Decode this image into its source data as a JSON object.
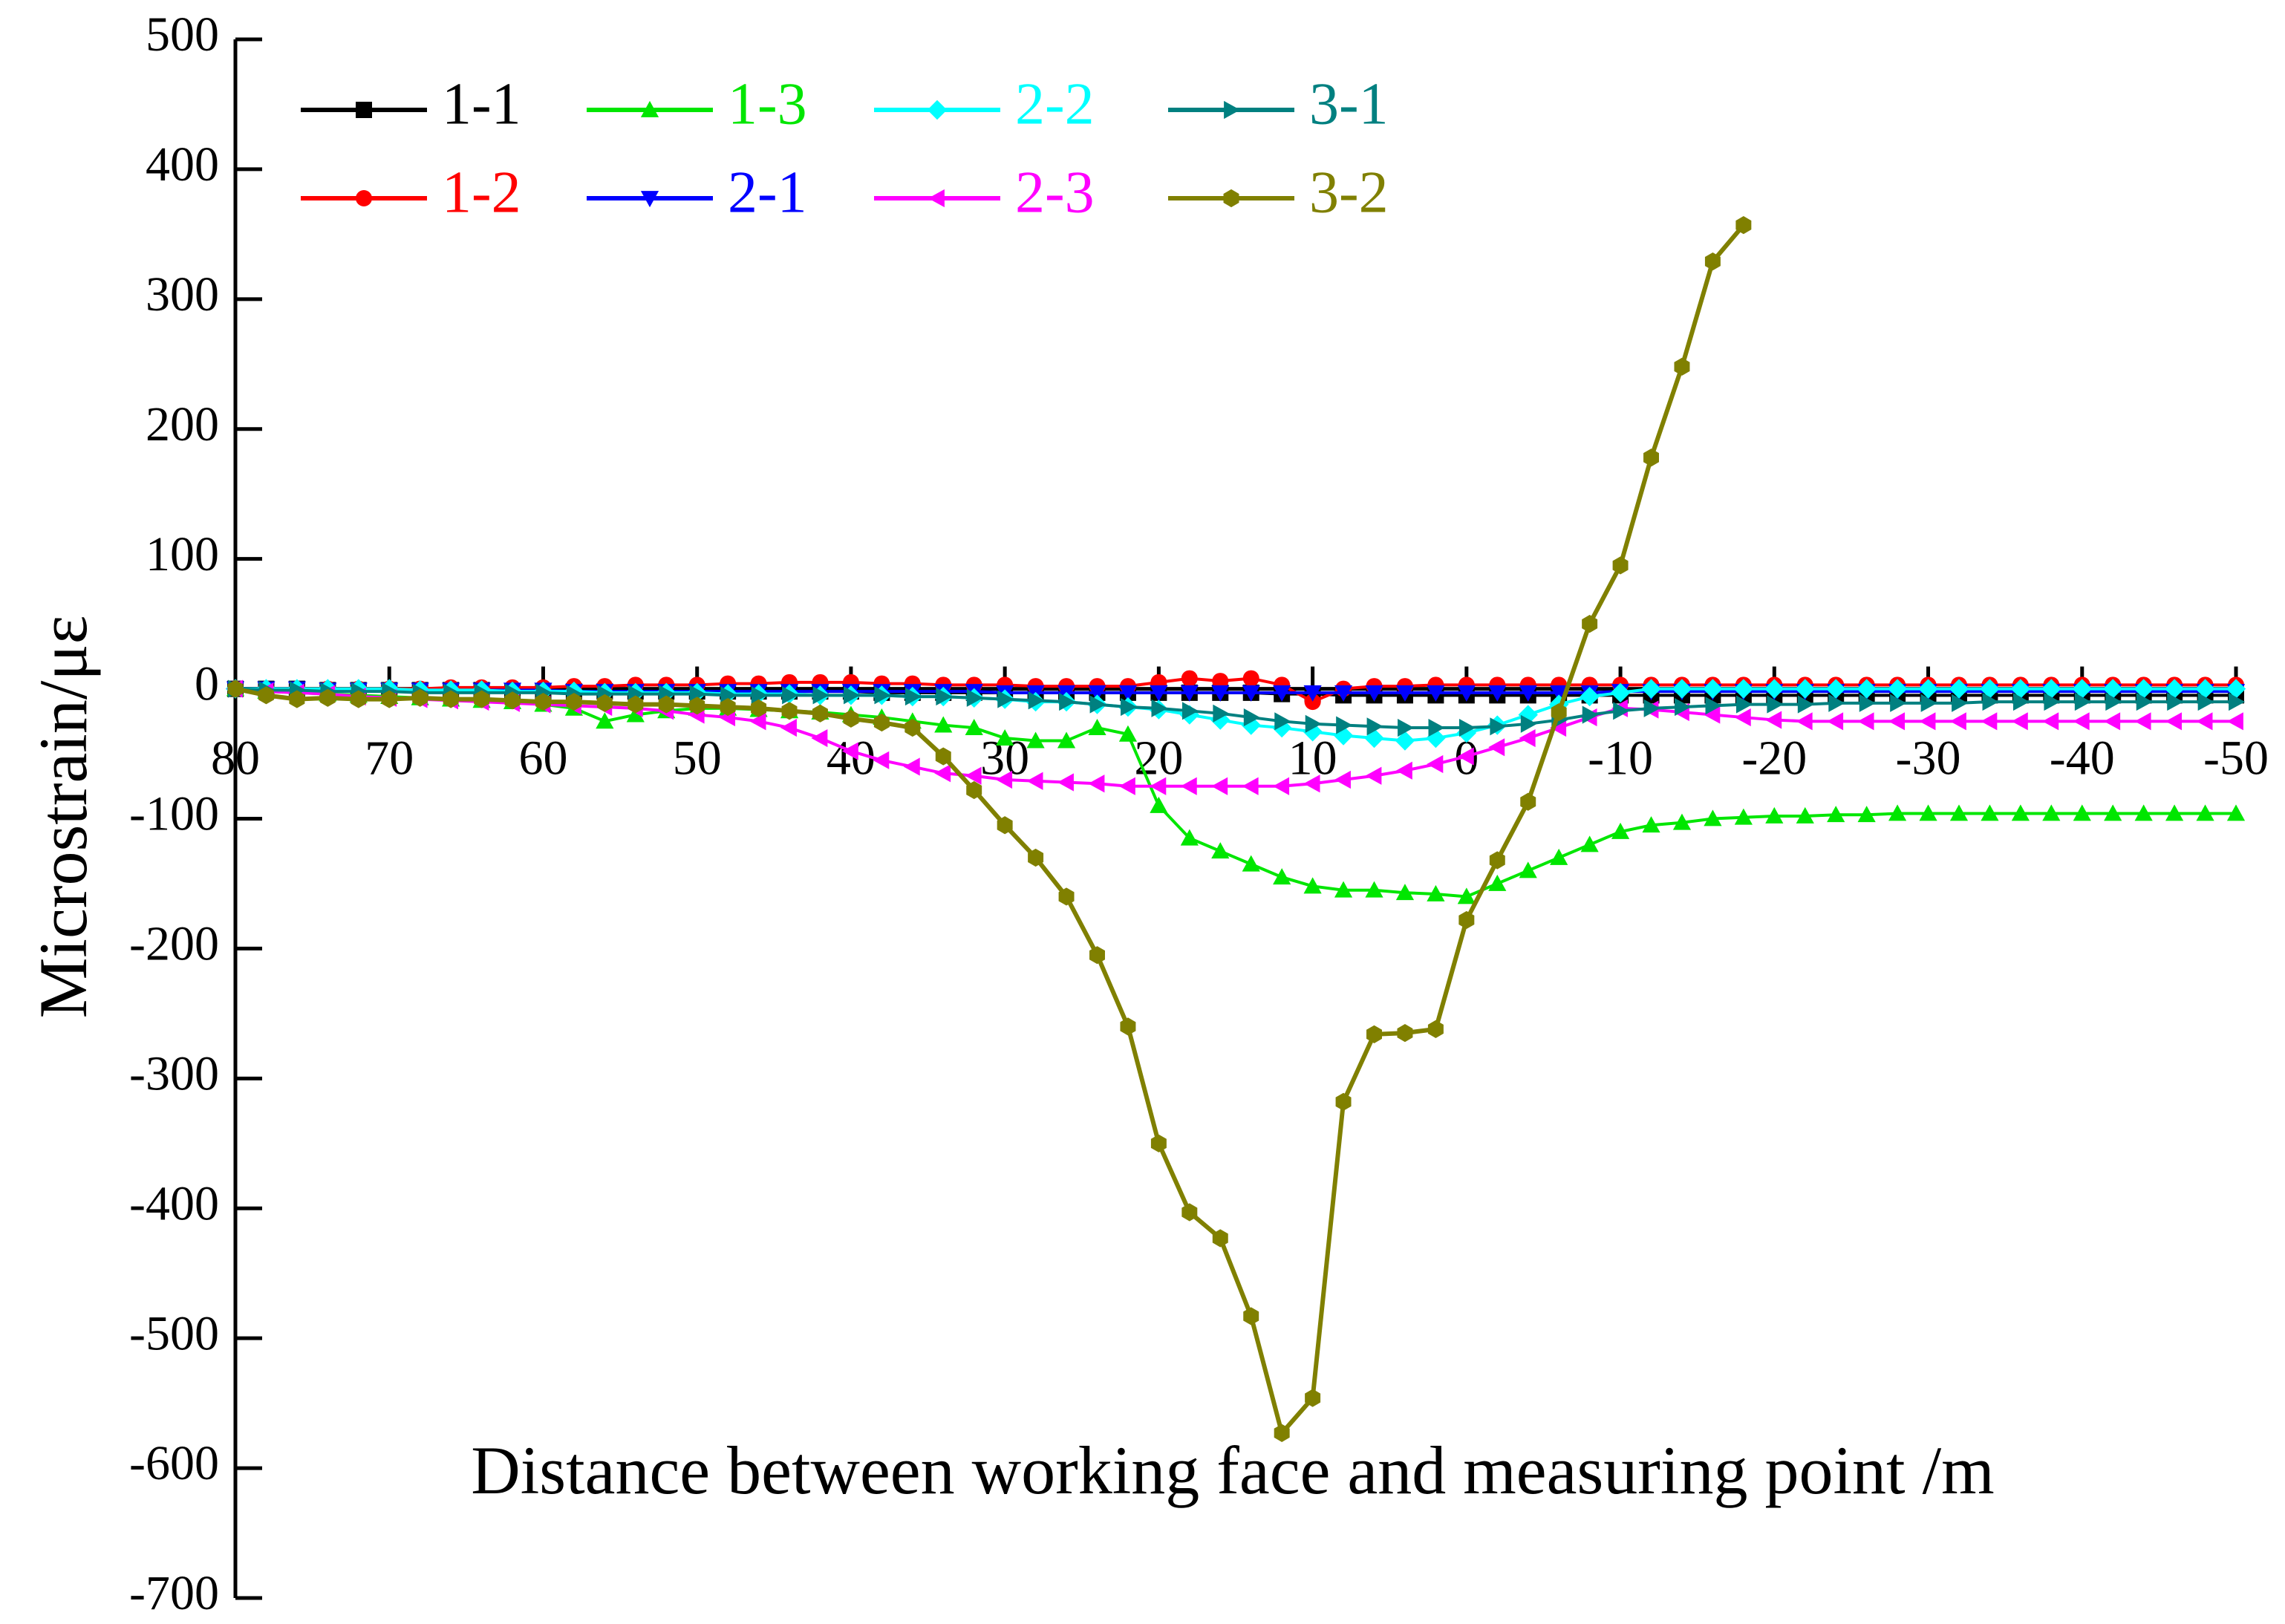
{
  "chart_data": {
    "type": "line",
    "xlabel": "Distance between working face and measuring point /m",
    "ylabel": "Microstrain/με",
    "x": [
      80,
      78,
      76,
      74,
      72,
      70,
      68,
      66,
      64,
      62,
      60,
      58,
      56,
      54,
      52,
      50,
      48,
      46,
      44,
      42,
      40,
      38,
      36,
      34,
      32,
      30,
      28,
      26,
      24,
      22,
      20,
      18,
      16,
      14,
      12,
      10,
      8,
      6,
      4,
      2,
      0,
      -2,
      -4,
      -6,
      -8,
      -10,
      -12,
      -14,
      -16,
      -18,
      -20,
      -22,
      -24,
      -26,
      -28,
      -30,
      -32,
      -34,
      -36,
      -38,
      -40,
      -42,
      -44,
      -46,
      -48,
      -50
    ],
    "xlim": [
      80,
      -50
    ],
    "xticks": [
      80,
      70,
      60,
      50,
      40,
      30,
      20,
      10,
      0,
      -10,
      -20,
      -30,
      -40,
      -50
    ],
    "ylim": [
      -700,
      500
    ],
    "yticks": [
      -700,
      -600,
      -500,
      -400,
      -300,
      -200,
      -100,
      0,
      100,
      200,
      300,
      400,
      500
    ],
    "legend": "upper-left",
    "series": [
      {
        "name": "1-1",
        "color": "#000000",
        "marker": "square",
        "values": [
          0,
          0,
          0,
          -1,
          -1,
          -1,
          -1,
          -1,
          -1,
          -2,
          -2,
          -2,
          -2,
          -2,
          -2,
          -2,
          -2,
          -2,
          -2,
          -2,
          -2,
          -3,
          -3,
          -3,
          -3,
          -3,
          -3,
          -3,
          -3,
          -3,
          -3,
          -3,
          -3,
          -3,
          -4,
          -4,
          -5,
          -5,
          -5,
          -5,
          -5,
          -5,
          -5,
          -5,
          -5,
          -5,
          -5,
          -5,
          -5,
          -5,
          -5,
          -5,
          -5,
          -5,
          -5,
          -5,
          -5,
          -5,
          -5,
          -5,
          -5,
          -5,
          -5,
          -5,
          -5,
          -5
        ]
      },
      {
        "name": "1-2",
        "color": "#ff0000",
        "marker": "circle",
        "values": [
          0,
          0,
          0,
          0,
          0,
          0,
          0,
          1,
          1,
          1,
          1,
          2,
          2,
          3,
          3,
          3,
          4,
          4,
          5,
          5,
          5,
          4,
          4,
          3,
          3,
          3,
          2,
          2,
          2,
          2,
          5,
          8,
          6,
          8,
          3,
          -10,
          0,
          2,
          2,
          3,
          3,
          3,
          3,
          3,
          3,
          3,
          3,
          3,
          3,
          3,
          3,
          3,
          3,
          3,
          3,
          3,
          3,
          3,
          3,
          3,
          3,
          3,
          3,
          3,
          3,
          3
        ]
      },
      {
        "name": "1-3",
        "color": "#00e600",
        "marker": "triangle-up",
        "values": [
          0,
          -2,
          -3,
          -4,
          -5,
          -6,
          -7,
          -8,
          -9,
          -10,
          -12,
          -15,
          -25,
          -20,
          -17,
          -15,
          -15,
          -16,
          -17,
          -18,
          -20,
          -22,
          -25,
          -28,
          -30,
          -38,
          -40,
          -40,
          -30,
          -35,
          -90,
          -115,
          -125,
          -135,
          -145,
          -152,
          -155,
          -155,
          -157,
          -158,
          -160,
          -150,
          -140,
          -130,
          -120,
          -110,
          -105,
          -103,
          -100,
          -99,
          -98,
          -98,
          -97,
          -97,
          -96,
          -96,
          -96,
          -96,
          -96,
          -96,
          -96,
          -96,
          -96,
          -96,
          -96,
          -96
        ]
      },
      {
        "name": "2-1",
        "color": "#0000ff",
        "marker": "triangle-down",
        "values": [
          0,
          0,
          0,
          -1,
          -1,
          -1,
          -1,
          -1,
          -1,
          -1,
          -1,
          -2,
          -2,
          -2,
          -2,
          -2,
          -2,
          -2,
          -2,
          -2,
          -2,
          -2,
          -2,
          -2,
          -2,
          -3,
          -3,
          -3,
          -3,
          -3,
          -3,
          -3,
          -3,
          -3,
          -3,
          -3,
          -3,
          -3,
          -3,
          -3,
          -3,
          -3,
          -3,
          -3,
          -3,
          -2,
          -2,
          -2,
          -2,
          -2,
          -2,
          -2,
          -2,
          -2,
          -2,
          -2,
          -2,
          -2,
          -2,
          -2,
          -2,
          -2,
          -2,
          -2,
          -2,
          -2
        ]
      },
      {
        "name": "2-2",
        "color": "#00ffff",
        "marker": "diamond",
        "values": [
          0,
          0,
          0,
          0,
          0,
          0,
          -1,
          -1,
          -1,
          -2,
          -2,
          -2,
          -3,
          -3,
          -3,
          -3,
          -4,
          -4,
          -4,
          -5,
          -5,
          -5,
          -6,
          -6,
          -7,
          -8,
          -10,
          -10,
          -12,
          -14,
          -16,
          -20,
          -24,
          -28,
          -30,
          -33,
          -36,
          -38,
          -40,
          -38,
          -34,
          -28,
          -20,
          -12,
          -6,
          -3,
          0,
          0,
          0,
          0,
          0,
          0,
          0,
          0,
          0,
          0,
          0,
          0,
          0,
          0,
          0,
          0,
          0,
          0,
          0,
          0
        ]
      },
      {
        "name": "2-3",
        "color": "#ff00ff",
        "marker": "triangle-left",
        "values": [
          0,
          -2,
          -3,
          -4,
          -6,
          -7,
          -8,
          -9,
          -10,
          -11,
          -12,
          -13,
          -14,
          -15,
          -17,
          -20,
          -22,
          -25,
          -30,
          -38,
          -48,
          -55,
          -60,
          -65,
          -67,
          -70,
          -71,
          -72,
          -73,
          -75,
          -75,
          -75,
          -75,
          -75,
          -75,
          -73,
          -70,
          -67,
          -63,
          -58,
          -52,
          -45,
          -38,
          -30,
          -22,
          -15,
          -16,
          -18,
          -20,
          -22,
          -24,
          -25,
          -25,
          -25,
          -25,
          -25,
          -25,
          -25,
          -25,
          -25,
          -25,
          -25,
          -25,
          -25,
          -25,
          -25
        ]
      },
      {
        "name": "3-1",
        "color": "#008080",
        "marker": "triangle-right",
        "values": [
          0,
          -1,
          -1,
          -2,
          -2,
          -2,
          -3,
          -3,
          -3,
          -3,
          -3,
          -4,
          -4,
          -4,
          -4,
          -4,
          -5,
          -5,
          -5,
          -5,
          -5,
          -5,
          -6,
          -6,
          -7,
          -8,
          -9,
          -10,
          -12,
          -14,
          -15,
          -17,
          -19,
          -22,
          -25,
          -27,
          -28,
          -29,
          -30,
          -30,
          -30,
          -29,
          -27,
          -24,
          -20,
          -17,
          -15,
          -14,
          -13,
          -12,
          -12,
          -12,
          -11,
          -11,
          -11,
          -11,
          -11,
          -10,
          -10,
          -10,
          -10,
          -10,
          -10,
          -10,
          -10,
          -10
        ]
      },
      {
        "name": "3-2",
        "color": "#808000",
        "marker": "hexagon",
        "values": [
          0,
          -5,
          -8,
          -7,
          -8,
          -8,
          -7,
          -8,
          -8,
          -9,
          -10,
          -10,
          -11,
          -12,
          -12,
          -13,
          -14,
          -15,
          -17,
          -19,
          -23,
          -26,
          -30,
          -52,
          -78,
          -105,
          -130,
          -160,
          -205,
          -260,
          -350,
          -403,
          -423,
          -483,
          -573,
          -546,
          -318,
          -266,
          -265,
          -262,
          -178,
          -132,
          -87,
          -18,
          50,
          95,
          178,
          248,
          329,
          357,
          null,
          null,
          null,
          null,
          null,
          null,
          null,
          null,
          null,
          null,
          null,
          null,
          null,
          null,
          null,
          null
        ]
      }
    ]
  }
}
